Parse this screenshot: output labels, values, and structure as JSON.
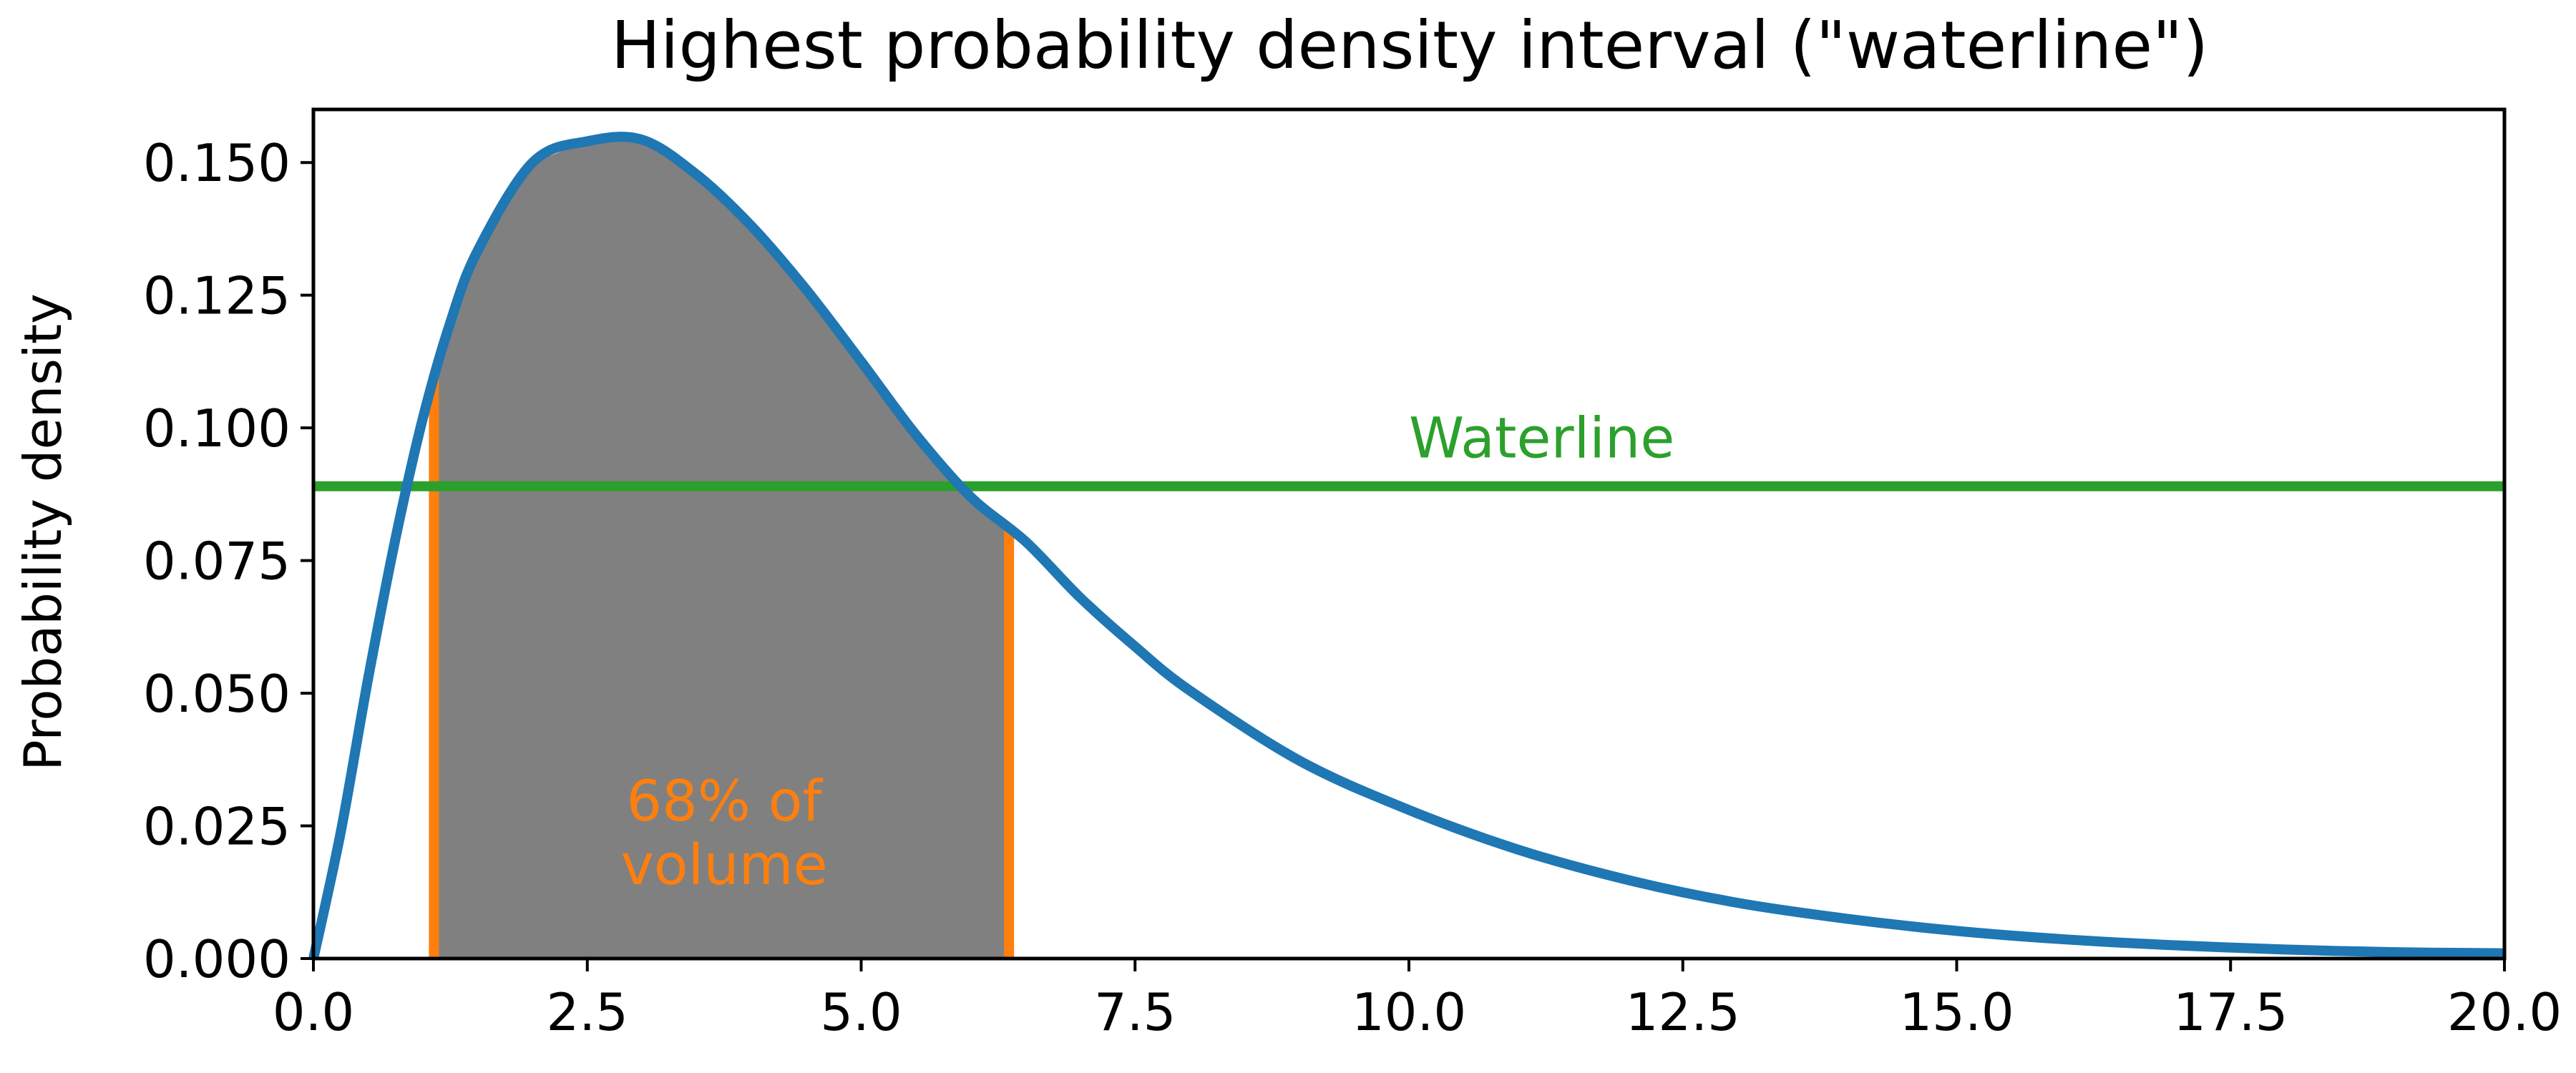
{
  "chart_data": {
    "type": "area",
    "title": "Highest probability density interval (\"waterline\")",
    "xlabel": "",
    "ylabel": "Probability density",
    "xlim": [
      0,
      20
    ],
    "ylim": [
      0,
      0.16
    ],
    "xticks": [
      "0.0",
      "2.5",
      "5.0",
      "7.5",
      "10.0",
      "12.5",
      "15.0",
      "17.5",
      "20.0"
    ],
    "yticks": [
      "0.000",
      "0.025",
      "0.050",
      "0.075",
      "0.100",
      "0.125",
      "0.150"
    ],
    "grid": false,
    "series": [
      {
        "color": "#1f77b4",
        "x": [
          0,
          0.25,
          0.5,
          0.75,
          1.0,
          1.25,
          1.5,
          2.0,
          2.5,
          3.0,
          3.5,
          4.0,
          4.5,
          5.0,
          5.5,
          6.0,
          6.5,
          7.0,
          7.5,
          8.0,
          9.0,
          10.0,
          11.0,
          12.0,
          13.0,
          14.0,
          15.0,
          16.0,
          17.0,
          18.0,
          19.0,
          20.0
        ],
        "y": [
          0.0,
          0.0239,
          0.0528,
          0.0792,
          0.1019,
          0.1199,
          0.1334,
          0.15,
          0.154,
          0.1543,
          0.1477,
          0.138,
          0.126,
          0.1125,
          0.0987,
          0.087,
          0.0786,
          0.068,
          0.0588,
          0.0505,
          0.0373,
          0.028,
          0.0205,
          0.0148,
          0.0105,
          0.0075,
          0.0052,
          0.0036,
          0.0025,
          0.0017,
          0.0012,
          0.001
        ]
      }
    ],
    "waterline": {
      "y": 0.089,
      "color": "#2ca02c",
      "label": "Waterline",
      "label_x": 10.0
    },
    "interval": {
      "x_low": 1.1,
      "x_high": 6.35,
      "fill_color": "#808080",
      "bound_color": "#ff7f0e",
      "label_lines": [
        "68% of",
        "volume"
      ],
      "label_x": 3.75,
      "label_ys": [
        0.026,
        0.014
      ]
    }
  }
}
